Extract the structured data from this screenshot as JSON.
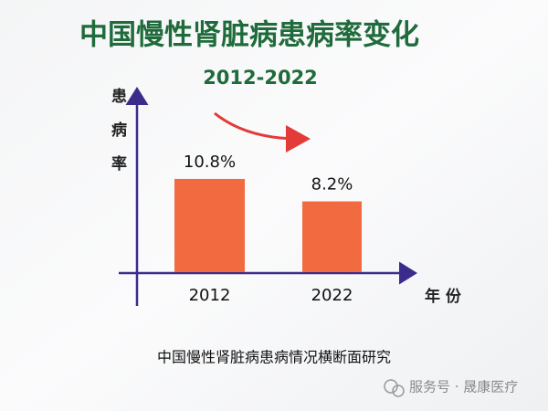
{
  "chart_data": {
    "type": "bar",
    "title": "中国慢性肾脏病患病率变化",
    "subtitle": "2012-2022",
    "y_label": "患病率",
    "x_label": "年 份",
    "categories": [
      "2012",
      "2022"
    ],
    "values": [
      10.8,
      8.2
    ],
    "value_labels": [
      "10.8%",
      "8.2%"
    ],
    "color": "#f26b40",
    "footnote": "中国慢性肾脏病患病情况横断面研究",
    "watermark": "服务号 · 晟康医疗"
  }
}
